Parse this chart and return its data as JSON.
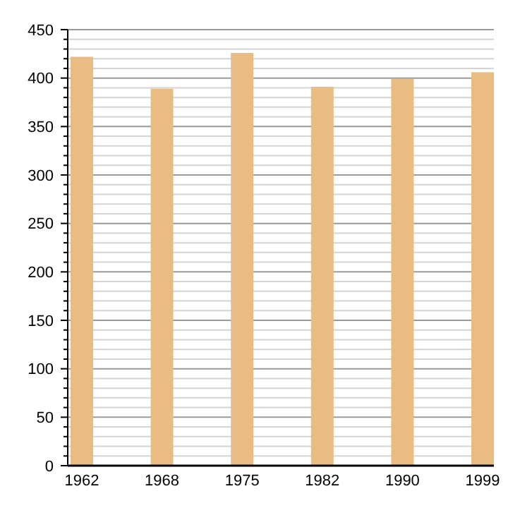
{
  "chart_data": {
    "type": "bar",
    "categories": [
      "1962",
      "1968",
      "1975",
      "1982",
      "1990",
      "1999"
    ],
    "values": [
      422,
      389,
      426,
      391,
      399,
      406
    ],
    "color": "#e8bc82",
    "ylim": [
      0,
      450
    ],
    "yticks": [
      0,
      50,
      100,
      150,
      200,
      250,
      300,
      350,
      400,
      450
    ],
    "grid": "y"
  }
}
